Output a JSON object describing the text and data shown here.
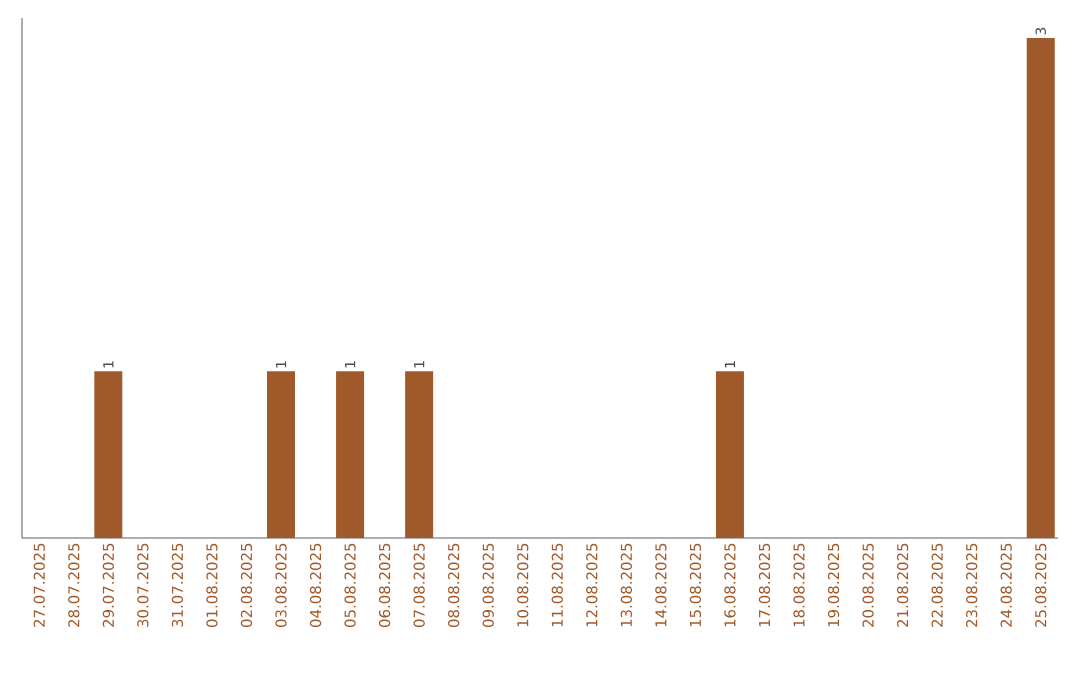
{
  "chart_data": {
    "type": "bar",
    "categories": [
      "27.07.2025",
      "28.07.2025",
      "29.07.2025",
      "30.07.2025",
      "31.07.2025",
      "01.08.2025",
      "02.08.2025",
      "03.08.2025",
      "04.08.2025",
      "05.08.2025",
      "06.08.2025",
      "07.08.2025",
      "08.08.2025",
      "09.08.2025",
      "10.08.2025",
      "11.08.2025",
      "12.08.2025",
      "13.08.2025",
      "14.08.2025",
      "15.08.2025",
      "16.08.2025",
      "17.08.2025",
      "18.08.2025",
      "19.08.2025",
      "20.08.2025",
      "21.08.2025",
      "22.08.2025",
      "23.08.2025",
      "24.08.2025",
      "25.08.2025"
    ],
    "values": [
      0,
      0,
      1,
      0,
      0,
      0,
      0,
      1,
      0,
      1,
      0,
      1,
      0,
      0,
      0,
      0,
      0,
      0,
      0,
      0,
      1,
      0,
      0,
      0,
      0,
      0,
      0,
      0,
      0,
      3
    ],
    "value_labels": [
      null,
      null,
      "1",
      null,
      null,
      null,
      null,
      "1",
      null,
      "1",
      null,
      "1",
      null,
      null,
      null,
      null,
      null,
      null,
      null,
      null,
      "1",
      null,
      null,
      null,
      null,
      null,
      null,
      null,
      null,
      "3"
    ],
    "color": "#a0592a"
  }
}
